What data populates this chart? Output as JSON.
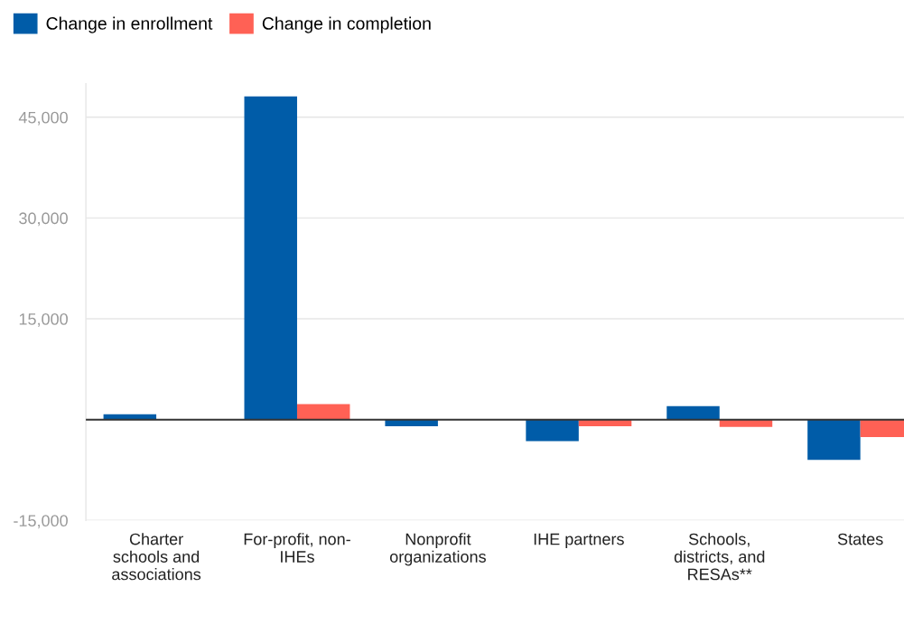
{
  "chart_data": {
    "type": "bar",
    "categories": [
      "Charter\nschools and\nassociations",
      "For-profit, non-\nIHEs",
      "Nonprofit\norganizations",
      "IHE partners",
      "Schools,\ndistricts, and\nRESAs**",
      "States"
    ],
    "series": [
      {
        "name": "Change in enrollment",
        "color": "#005ca8",
        "values": [
          800,
          48100,
          -1000,
          -3200,
          2000,
          -6000
        ]
      },
      {
        "name": "Change in completion",
        "color": "#ff6155",
        "values": [
          0,
          2300,
          0,
          -1000,
          -1100,
          -2600
        ]
      }
    ],
    "ylim": [
      -15000,
      50000
    ],
    "yticks": [
      {
        "value": -15000,
        "label": "-15,000"
      },
      {
        "value": 0,
        "label": null
      },
      {
        "value": 15000,
        "label": "15,000"
      },
      {
        "value": 30000,
        "label": "30,000"
      },
      {
        "value": 45000,
        "label": "45,000"
      }
    ],
    "ref_lines": [
      {
        "axis": "y",
        "value": 0,
        "color": "#333333"
      }
    ],
    "grid": "y",
    "legend": "top left"
  }
}
